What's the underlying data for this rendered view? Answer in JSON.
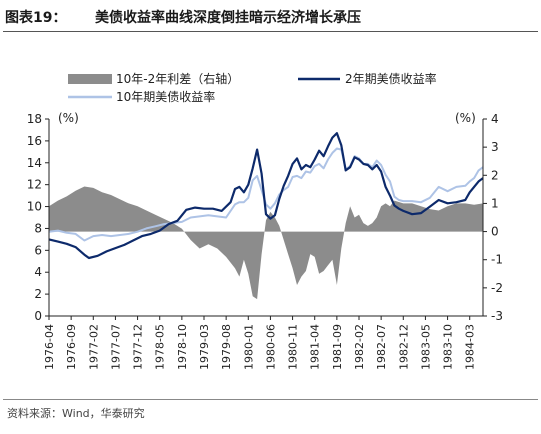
{
  "header": {
    "label": "图表19：",
    "title": "美债收益率曲线深度倒挂暗示经济增长承压"
  },
  "source": "资料来源：Wind，华泰研究",
  "chart_data": {
    "type": "line",
    "y_left": {
      "unit": "(%)",
      "min": 0,
      "max": 18,
      "ticks": [
        0,
        2,
        4,
        6,
        8,
        10,
        12,
        14,
        16,
        18
      ]
    },
    "y_right": {
      "unit": "(%)",
      "min": -3,
      "max": 4,
      "ticks": [
        -3,
        -2,
        -1,
        0,
        1,
        2,
        3,
        4
      ]
    },
    "x_range": [
      "1976-04",
      "1984-06"
    ],
    "x_ticks": [
      "1976-04",
      "1976-09",
      "1977-02",
      "1977-07",
      "1977-12",
      "1978-05",
      "1978-10",
      "1979-03",
      "1979-08",
      "1980-01",
      "1980-06",
      "1980-11",
      "1981-04",
      "1981-09",
      "1982-02",
      "1982-07",
      "1982-12",
      "1983-05",
      "1983-10",
      "1984-03"
    ],
    "legend": [
      "10年-2年利差（右轴）",
      "2年期美债收益率",
      "10年期美债收益率"
    ],
    "colors": {
      "spread": "#8c8c8c",
      "y2": "#0d2a6b",
      "y10": "#aec3e6"
    },
    "series": [
      {
        "name": "10年-2年利差（右轴）",
        "axis": "right",
        "kind": "area",
        "points": [
          [
            "1976-04",
            0.9
          ],
          [
            "1976-06",
            1.1
          ],
          [
            "1976-08",
            1.25
          ],
          [
            "1976-10",
            1.45
          ],
          [
            "1976-12",
            1.6
          ],
          [
            "1977-02",
            1.55
          ],
          [
            "1977-04",
            1.4
          ],
          [
            "1977-06",
            1.3
          ],
          [
            "1977-08",
            1.15
          ],
          [
            "1977-10",
            1.0
          ],
          [
            "1977-12",
            0.9
          ],
          [
            "1978-02",
            0.75
          ],
          [
            "1978-04",
            0.6
          ],
          [
            "1978-06",
            0.45
          ],
          [
            "1978-08",
            0.3
          ],
          [
            "1978-10",
            0.1
          ],
          [
            "1978-12",
            -0.3
          ],
          [
            "1979-02",
            -0.6
          ],
          [
            "1979-04",
            -0.45
          ],
          [
            "1979-06",
            -0.6
          ],
          [
            "1979-08",
            -0.9
          ],
          [
            "1979-10",
            -1.3
          ],
          [
            "1979-11",
            -1.6
          ],
          [
            "1979-12",
            -1.0
          ],
          [
            "1980-01",
            -1.5
          ],
          [
            "1980-02",
            -2.3
          ],
          [
            "1980-03",
            -2.4
          ],
          [
            "1980-04",
            -0.8
          ],
          [
            "1980-05",
            0.4
          ],
          [
            "1980-06",
            0.7
          ],
          [
            "1980-07",
            0.5
          ],
          [
            "1980-08",
            0.2
          ],
          [
            "1980-09",
            -0.3
          ],
          [
            "1980-10",
            -0.8
          ],
          [
            "1980-11",
            -1.3
          ],
          [
            "1980-12",
            -1.9
          ],
          [
            "1981-01",
            -1.6
          ],
          [
            "1981-02",
            -1.4
          ],
          [
            "1981-03",
            -0.8
          ],
          [
            "1981-04",
            -0.9
          ],
          [
            "1981-05",
            -1.5
          ],
          [
            "1981-06",
            -1.4
          ],
          [
            "1981-07",
            -1.2
          ],
          [
            "1981-08",
            -1.0
          ],
          [
            "1981-09",
            -1.9
          ],
          [
            "1981-10",
            -0.6
          ],
          [
            "1981-11",
            0.3
          ],
          [
            "1981-12",
            0.9
          ],
          [
            "1982-01",
            0.5
          ],
          [
            "1982-02",
            0.6
          ],
          [
            "1982-03",
            0.3
          ],
          [
            "1982-04",
            0.2
          ],
          [
            "1982-05",
            0.3
          ],
          [
            "1982-06",
            0.5
          ],
          [
            "1982-07",
            0.9
          ],
          [
            "1982-08",
            1.0
          ],
          [
            "1982-09",
            0.9
          ],
          [
            "1982-10",
            1.1
          ],
          [
            "1982-12",
            1.0
          ],
          [
            "1983-02",
            1.0
          ],
          [
            "1983-04",
            0.9
          ],
          [
            "1983-06",
            0.8
          ],
          [
            "1983-08",
            0.75
          ],
          [
            "1983-10",
            0.9
          ],
          [
            "1983-12",
            1.0
          ],
          [
            "1984-02",
            1.0
          ],
          [
            "1984-04",
            0.95
          ],
          [
            "1984-06",
            1.0
          ]
        ]
      },
      {
        "name": "2年期美债收益率",
        "axis": "left",
        "kind": "line",
        "points": [
          [
            "1976-04",
            7.0
          ],
          [
            "1976-06",
            6.8
          ],
          [
            "1976-08",
            6.6
          ],
          [
            "1976-10",
            6.3
          ],
          [
            "1976-12",
            5.6
          ],
          [
            "1977-01",
            5.3
          ],
          [
            "1977-03",
            5.5
          ],
          [
            "1977-05",
            5.9
          ],
          [
            "1977-07",
            6.2
          ],
          [
            "1977-09",
            6.5
          ],
          [
            "1977-11",
            6.9
          ],
          [
            "1978-01",
            7.3
          ],
          [
            "1978-03",
            7.5
          ],
          [
            "1978-05",
            7.8
          ],
          [
            "1978-07",
            8.4
          ],
          [
            "1978-09",
            8.7
          ],
          [
            "1978-11",
            9.7
          ],
          [
            "1979-01",
            9.9
          ],
          [
            "1979-03",
            9.8
          ],
          [
            "1979-05",
            9.8
          ],
          [
            "1979-07",
            9.6
          ],
          [
            "1979-09",
            10.4
          ],
          [
            "1979-10",
            11.6
          ],
          [
            "1979-11",
            11.8
          ],
          [
            "1979-12",
            11.3
          ],
          [
            "1980-01",
            12.0
          ],
          [
            "1980-02",
            13.5
          ],
          [
            "1980-03",
            15.2
          ],
          [
            "1980-04",
            13.0
          ],
          [
            "1980-05",
            9.3
          ],
          [
            "1980-06",
            8.9
          ],
          [
            "1980-07",
            9.2
          ],
          [
            "1980-08",
            10.7
          ],
          [
            "1980-09",
            11.9
          ],
          [
            "1980-10",
            12.8
          ],
          [
            "1980-11",
            13.9
          ],
          [
            "1980-12",
            14.4
          ],
          [
            "1981-01",
            13.4
          ],
          [
            "1981-02",
            13.8
          ],
          [
            "1981-03",
            13.6
          ],
          [
            "1981-04",
            14.3
          ],
          [
            "1981-05",
            15.1
          ],
          [
            "1981-06",
            14.6
          ],
          [
            "1981-07",
            15.5
          ],
          [
            "1981-08",
            16.3
          ],
          [
            "1981-09",
            16.7
          ],
          [
            "1981-10",
            15.6
          ],
          [
            "1981-11",
            13.3
          ],
          [
            "1981-12",
            13.6
          ],
          [
            "1982-01",
            14.5
          ],
          [
            "1982-02",
            14.3
          ],
          [
            "1982-03",
            13.9
          ],
          [
            "1982-04",
            13.8
          ],
          [
            "1982-05",
            13.4
          ],
          [
            "1982-06",
            13.8
          ],
          [
            "1982-07",
            13.2
          ],
          [
            "1982-08",
            11.8
          ],
          [
            "1982-09",
            11.0
          ],
          [
            "1982-10",
            10.1
          ],
          [
            "1982-11",
            9.8
          ],
          [
            "1982-12",
            9.6
          ],
          [
            "1983-02",
            9.3
          ],
          [
            "1983-04",
            9.4
          ],
          [
            "1983-06",
            10.0
          ],
          [
            "1983-08",
            10.6
          ],
          [
            "1983-10",
            10.3
          ],
          [
            "1983-12",
            10.4
          ],
          [
            "1984-02",
            10.6
          ],
          [
            "1984-03",
            11.3
          ],
          [
            "1984-04",
            11.8
          ],
          [
            "1984-05",
            12.3
          ],
          [
            "1984-06",
            12.6
          ]
        ]
      },
      {
        "name": "10年期美债收益率",
        "axis": "left",
        "kind": "line",
        "points": [
          [
            "1976-04",
            7.7
          ],
          [
            "1976-06",
            7.8
          ],
          [
            "1976-08",
            7.6
          ],
          [
            "1976-10",
            7.5
          ],
          [
            "1976-12",
            6.9
          ],
          [
            "1977-02",
            7.3
          ],
          [
            "1977-04",
            7.4
          ],
          [
            "1977-06",
            7.3
          ],
          [
            "1977-08",
            7.4
          ],
          [
            "1977-10",
            7.5
          ],
          [
            "1977-12",
            7.7
          ],
          [
            "1978-02",
            8.0
          ],
          [
            "1978-04",
            8.2
          ],
          [
            "1978-06",
            8.4
          ],
          [
            "1978-08",
            8.5
          ],
          [
            "1978-10",
            8.6
          ],
          [
            "1978-12",
            9.0
          ],
          [
            "1979-02",
            9.1
          ],
          [
            "1979-04",
            9.2
          ],
          [
            "1979-06",
            9.1
          ],
          [
            "1979-08",
            9.0
          ],
          [
            "1979-10",
            10.2
          ],
          [
            "1979-11",
            10.4
          ],
          [
            "1979-12",
            10.4
          ],
          [
            "1980-01",
            10.8
          ],
          [
            "1980-02",
            12.4
          ],
          [
            "1980-03",
            12.8
          ],
          [
            "1980-04",
            11.5
          ],
          [
            "1980-05",
            10.2
          ],
          [
            "1980-06",
            9.8
          ],
          [
            "1980-07",
            10.3
          ],
          [
            "1980-08",
            11.1
          ],
          [
            "1980-09",
            11.5
          ],
          [
            "1980-10",
            11.8
          ],
          [
            "1980-11",
            12.7
          ],
          [
            "1980-12",
            12.8
          ],
          [
            "1981-01",
            12.6
          ],
          [
            "1981-02",
            13.2
          ],
          [
            "1981-03",
            13.1
          ],
          [
            "1981-04",
            13.7
          ],
          [
            "1981-05",
            13.9
          ],
          [
            "1981-06",
            13.5
          ],
          [
            "1981-07",
            14.3
          ],
          [
            "1981-08",
            14.9
          ],
          [
            "1981-09",
            15.3
          ],
          [
            "1981-10",
            15.2
          ],
          [
            "1981-11",
            13.4
          ],
          [
            "1981-12",
            13.7
          ],
          [
            "1982-01",
            14.6
          ],
          [
            "1982-02",
            14.4
          ],
          [
            "1982-03",
            13.9
          ],
          [
            "1982-04",
            13.9
          ],
          [
            "1982-05",
            13.6
          ],
          [
            "1982-06",
            14.2
          ],
          [
            "1982-07",
            13.8
          ],
          [
            "1982-08",
            12.9
          ],
          [
            "1982-09",
            12.3
          ],
          [
            "1982-10",
            10.9
          ],
          [
            "1982-11",
            10.6
          ],
          [
            "1982-12",
            10.5
          ],
          [
            "1983-02",
            10.5
          ],
          [
            "1983-04",
            10.4
          ],
          [
            "1983-06",
            10.8
          ],
          [
            "1983-08",
            11.8
          ],
          [
            "1983-10",
            11.4
          ],
          [
            "1983-12",
            11.8
          ],
          [
            "1984-02",
            11.9
          ],
          [
            "1984-03",
            12.3
          ],
          [
            "1984-04",
            12.6
          ],
          [
            "1984-05",
            13.3
          ],
          [
            "1984-06",
            13.6
          ]
        ]
      }
    ]
  }
}
